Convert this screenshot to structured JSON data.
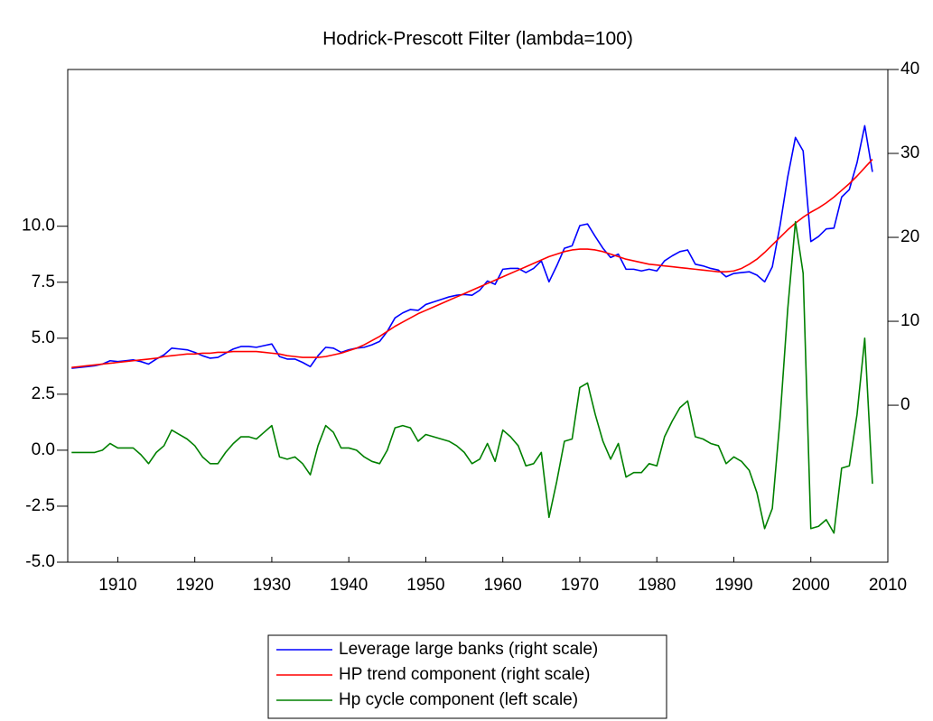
{
  "chart_data": {
    "type": "line",
    "title": "Hodrick-Prescott Filter (lambda=100)",
    "x": [
      1904,
      1905,
      1906,
      1907,
      1908,
      1909,
      1910,
      1911,
      1912,
      1913,
      1914,
      1915,
      1916,
      1917,
      1918,
      1919,
      1920,
      1921,
      1922,
      1923,
      1924,
      1925,
      1926,
      1927,
      1928,
      1929,
      1930,
      1931,
      1932,
      1933,
      1934,
      1935,
      1936,
      1937,
      1938,
      1939,
      1940,
      1941,
      1942,
      1943,
      1944,
      1945,
      1946,
      1947,
      1948,
      1949,
      1950,
      1951,
      1952,
      1953,
      1954,
      1955,
      1956,
      1957,
      1958,
      1959,
      1960,
      1961,
      1962,
      1963,
      1964,
      1965,
      1966,
      1967,
      1968,
      1969,
      1970,
      1971,
      1972,
      1973,
      1974,
      1975,
      1976,
      1977,
      1978,
      1979,
      1980,
      1981,
      1982,
      1983,
      1984,
      1985,
      1986,
      1987,
      1988,
      1989,
      1990,
      1991,
      1992,
      1993,
      1994,
      1995,
      1996,
      1997,
      1998,
      1999,
      2000,
      2001,
      2002,
      2003,
      2004,
      2005,
      2006,
      2007,
      2008
    ],
    "series": [
      {
        "name": "Leverage large banks (right scale)",
        "color": "#0000ff",
        "axis": "y2",
        "values": [
          4.4,
          4.5,
          4.6,
          4.7,
          4.9,
          5.3,
          5.2,
          5.3,
          5.4,
          5.2,
          4.9,
          5.5,
          6.0,
          6.8,
          6.7,
          6.6,
          6.3,
          5.9,
          5.6,
          5.7,
          6.2,
          6.7,
          7.0,
          7.0,
          6.9,
          7.1,
          7.3,
          5.8,
          5.5,
          5.5,
          5.1,
          4.6,
          5.9,
          6.9,
          6.8,
          6.3,
          6.6,
          6.8,
          6.9,
          7.2,
          7.6,
          8.8,
          10.4,
          11.0,
          11.4,
          11.3,
          12.0,
          12.3,
          12.6,
          12.9,
          13.1,
          13.2,
          13.1,
          13.7,
          14.8,
          14.4,
          16.2,
          16.3,
          16.3,
          15.8,
          16.3,
          17.2,
          14.7,
          16.6,
          18.7,
          19.0,
          21.4,
          21.6,
          20.1,
          18.7,
          17.6,
          18.0,
          16.2,
          16.2,
          16.0,
          16.2,
          16.0,
          17.2,
          17.8,
          18.3,
          18.5,
          16.8,
          16.6,
          16.3,
          16.1,
          15.3,
          15.7,
          15.8,
          15.9,
          15.5,
          14.7,
          16.5,
          21.4,
          27.2,
          31.9,
          30.3,
          19.5,
          20.1,
          21.0,
          21.1,
          24.8,
          25.7,
          28.9,
          33.3,
          27.8
        ]
      },
      {
        "name": "HP trend component (right scale)",
        "color": "#ff0000",
        "axis": "y2",
        "values": [
          4.5,
          4.6,
          4.7,
          4.8,
          4.9,
          5.0,
          5.1,
          5.2,
          5.3,
          5.4,
          5.5,
          5.6,
          5.8,
          5.9,
          6.0,
          6.1,
          6.1,
          6.2,
          6.2,
          6.3,
          6.3,
          6.4,
          6.4,
          6.4,
          6.4,
          6.3,
          6.2,
          6.1,
          5.9,
          5.8,
          5.7,
          5.7,
          5.7,
          5.8,
          6.0,
          6.2,
          6.5,
          6.8,
          7.2,
          7.7,
          8.2,
          8.8,
          9.4,
          9.9,
          10.4,
          10.9,
          11.3,
          11.7,
          12.1,
          12.5,
          12.9,
          13.3,
          13.7,
          14.1,
          14.5,
          14.9,
          15.3,
          15.7,
          16.1,
          16.5,
          16.9,
          17.3,
          17.7,
          18.0,
          18.3,
          18.5,
          18.6,
          18.6,
          18.5,
          18.3,
          18.0,
          17.7,
          17.4,
          17.2,
          17.0,
          16.8,
          16.7,
          16.6,
          16.5,
          16.4,
          16.3,
          16.2,
          16.1,
          16.0,
          15.9,
          15.9,
          16.0,
          16.3,
          16.8,
          17.4,
          18.2,
          19.1,
          20.0,
          20.9,
          21.7,
          22.4,
          23.0,
          23.5,
          24.1,
          24.8,
          25.6,
          26.4,
          27.3,
          28.3,
          29.3
        ]
      },
      {
        "name": "Hp cycle component (left scale)",
        "color": "#008000",
        "values": [
          -0.1,
          -0.1,
          -0.1,
          -0.1,
          0,
          0.3,
          0.1,
          0.1,
          0.1,
          -0.2,
          -0.6,
          -0.1,
          0.2,
          0.9,
          0.7,
          0.5,
          0.2,
          -0.3,
          -0.6,
          -0.6,
          -0.1,
          0.3,
          0.6,
          0.6,
          0.5,
          0.8,
          1.1,
          -0.3,
          -0.4,
          -0.3,
          -0.6,
          -1.1,
          0.2,
          1.1,
          0.8,
          0.1,
          0.1,
          0,
          -0.3,
          -0.5,
          -0.6,
          0,
          1.0,
          1.1,
          1.0,
          0.4,
          0.7,
          0.6,
          0.5,
          0.4,
          0.2,
          -0.1,
          -0.6,
          -0.4,
          0.3,
          -0.5,
          0.9,
          0.6,
          0.2,
          -0.7,
          -0.6,
          -0.1,
          -3.0,
          -1.4,
          0.4,
          0.5,
          2.8,
          3.0,
          1.6,
          0.4,
          -0.4,
          0.3,
          -1.2,
          -1.0,
          -1.0,
          -0.6,
          -0.7,
          0.6,
          1.3,
          1.9,
          2.2,
          0.6,
          0.5,
          0.3,
          0.2,
          -0.6,
          -0.3,
          -0.5,
          -0.9,
          -1.9,
          -3.5,
          -2.6,
          1.4,
          6.3,
          10.2,
          7.9,
          -3.5,
          -3.4,
          -3.1,
          -3.7,
          -0.8,
          -0.7,
          1.6,
          5.0,
          -1.5
        ]
      }
    ],
    "xlim": [
      1903.5,
      2010
    ],
    "xticks": [
      1910,
      1920,
      1930,
      1940,
      1950,
      1960,
      1970,
      1980,
      1990,
      2000,
      2010
    ],
    "ylim": [
      -5,
      17
    ],
    "yticks": [
      {
        "value": -5,
        "label": "-5.0"
      },
      {
        "value": -2.5,
        "label": "-2.5"
      },
      {
        "value": 0,
        "label": "0.0"
      },
      {
        "value": 2.5,
        "label": "2.5"
      },
      {
        "value": 5,
        "label": "5.0"
      },
      {
        "value": 7.5,
        "label": "7.5"
      },
      {
        "value": 10,
        "label": "10.0"
      }
    ],
    "y2lim": [
      -18.7,
      40
    ],
    "y2ticks": [
      0,
      10,
      20,
      30,
      40
    ],
    "grid": false,
    "legend": "bottom"
  }
}
